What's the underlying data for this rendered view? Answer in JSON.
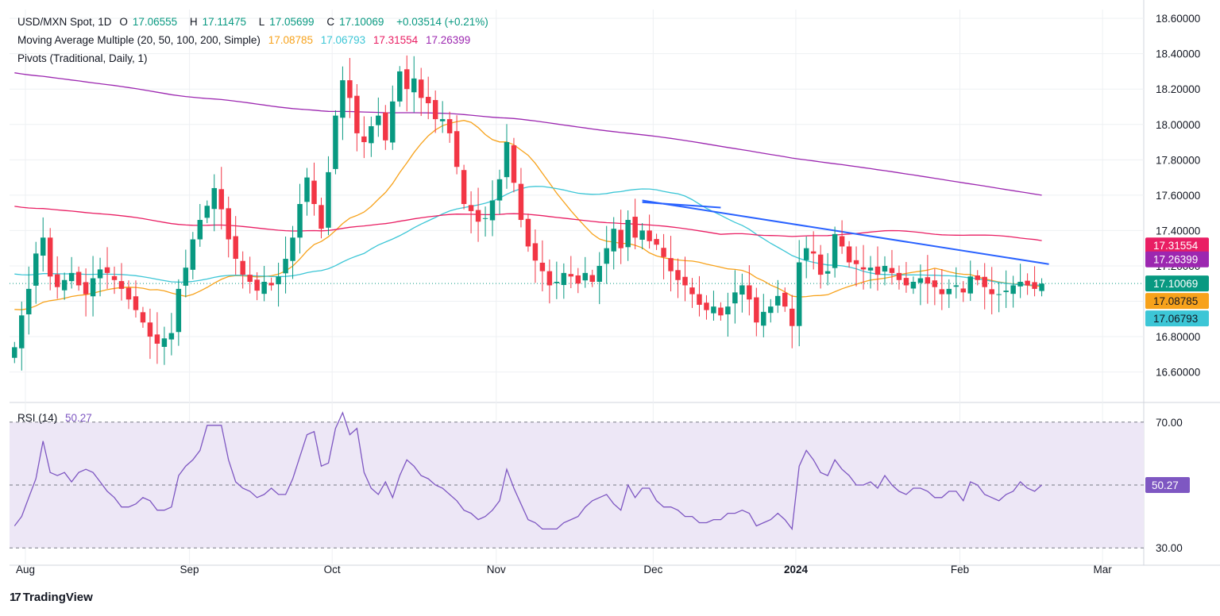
{
  "header": {
    "symbol": "USD/MXN Spot, 1D",
    "open_label": "O",
    "open": "17.06555",
    "high_label": "H",
    "high": "17.11475",
    "low_label": "L",
    "low": "17.05699",
    "close_label": "C",
    "close": "17.10069",
    "change": "+0.03514 (+0.21%)",
    "ma_label": "Moving Average Multiple (20, 50, 100, 200, Simple)",
    "ma20": "17.08785",
    "ma50": "17.06793",
    "ma100": "17.31554",
    "ma200": "17.26399",
    "pivots_label": "Pivots (Traditional, Daily, 1)"
  },
  "rsi": {
    "label": "RSI (14)",
    "value": "50.27"
  },
  "brand": {
    "logo": "17",
    "name": "TradingView"
  },
  "colors": {
    "up": "#089981",
    "down": "#f23645",
    "ma20": "#f7a21b",
    "ma50": "#3cc6d6",
    "ma100": "#e91e63",
    "ma200": "#9c27b0",
    "trend": "#2962ff",
    "rsi": "#7e57c2",
    "rsi_band": "#ede7f6",
    "grid": "#eef0f3",
    "price_line": "#089981"
  },
  "chart_data": {
    "type": "candlestick",
    "title": "USD/MXN Spot, 1D",
    "ylim": [
      16.45,
      18.65
    ],
    "y_ticks": [
      "16.60000",
      "16.80000",
      "17.00000",
      "17.20000",
      "17.40000",
      "17.60000",
      "17.80000",
      "18.00000",
      "18.20000",
      "18.40000",
      "18.60000"
    ],
    "y_tick_values": [
      16.6,
      16.8,
      17.0,
      17.2,
      17.4,
      17.6,
      17.8,
      18.0,
      18.2,
      18.4,
      18.6
    ],
    "x_ticks": [
      {
        "label": "Aug",
        "i": 0,
        "bold": false
      },
      {
        "label": "Sep",
        "i": 23,
        "bold": false
      },
      {
        "label": "Oct",
        "i": 43,
        "bold": false
      },
      {
        "label": "Nov",
        "i": 66,
        "bold": false
      },
      {
        "label": "Dec",
        "i": 88,
        "bold": false
      },
      {
        "label": "2024",
        "i": 108,
        "bold": true
      },
      {
        "label": "Feb",
        "i": 131,
        "bold": false
      },
      {
        "label": "Mar",
        "i": 151,
        "bold": false
      }
    ],
    "n_slots": 159,
    "close": [
      16.74,
      16.92,
      17.07,
      17.27,
      17.36,
      17.14,
      17.08,
      17.12,
      17.16,
      17.09,
      17.04,
      17.13,
      17.18,
      17.16,
      17.12,
      17.07,
      17.01,
      16.95,
      16.88,
      16.8,
      16.76,
      16.79,
      16.82,
      17.07,
      17.19,
      17.35,
      17.46,
      17.54,
      17.64,
      17.52,
      17.35,
      17.24,
      17.15,
      17.11,
      17.06,
      17.11,
      17.09,
      17.14,
      17.24,
      17.36,
      17.55,
      17.7,
      17.55,
      17.41,
      17.73,
      18.05,
      18.25,
      18.15,
      17.95,
      17.9,
      17.99,
      18.05,
      17.91,
      18.13,
      18.3,
      18.2,
      18.26,
      18.15,
      18.12,
      18.03,
      18.03,
      17.95,
      17.76,
      17.55,
      17.51,
      17.45,
      17.47,
      17.57,
      17.69,
      17.9,
      17.67,
      17.46,
      17.31,
      17.23,
      17.17,
      17.09,
      17.11,
      17.16,
      17.14,
      17.1,
      17.16,
      17.11,
      17.2,
      17.3,
      17.41,
      17.3,
      17.46,
      17.36,
      17.4,
      17.34,
      17.32,
      17.25,
      17.17,
      17.12,
      17.09,
      17.04,
      16.98,
      16.95,
      16.97,
      16.92,
      16.97,
      17.05,
      17.09,
      17.01,
      16.88,
      16.94,
      16.97,
      17.03,
      16.97,
      16.86,
      17.22,
      17.3,
      17.27,
      17.15,
      17.17,
      17.38,
      17.31,
      17.22,
      17.21,
      17.18,
      17.19,
      17.15,
      17.2,
      17.16,
      17.12,
      17.09,
      17.11,
      17.13,
      17.1,
      17.08,
      17.04,
      17.07,
      17.09,
      17.05,
      17.14,
      17.12,
      17.08,
      17.04,
      17.04,
      17.06,
      17.09,
      17.11,
      17.09,
      17.07,
      17.1
    ],
    "moving_averages": [
      {
        "name": "MA 20",
        "period": 20,
        "value": "17.08785"
      },
      {
        "name": "MA 50",
        "period": 50,
        "value": "17.06793"
      },
      {
        "name": "MA 100",
        "period": 100,
        "value": "17.31554"
      },
      {
        "name": "MA 200",
        "period": 200,
        "value": "17.26399"
      }
    ],
    "trendlines": [
      {
        "i1": 88,
        "y1": 17.56,
        "i2": 99,
        "y2": 17.53
      },
      {
        "i1": 88,
        "y1": 17.57,
        "i2": 145,
        "y2": 17.21
      }
    ],
    "rsi": {
      "ylim": [
        25,
        75
      ],
      "levels": [
        30,
        70
      ],
      "mid": 50,
      "level_labels": [
        "70.00",
        "30.00"
      ],
      "values": [
        37,
        40,
        46,
        52,
        64,
        54,
        53,
        54,
        51,
        54,
        55,
        54,
        51,
        48,
        46,
        43,
        43,
        44,
        46,
        45,
        42,
        42,
        43,
        53,
        56,
        58,
        61,
        69,
        69,
        69,
        58,
        51,
        49,
        48,
        46,
        47,
        49,
        47,
        47,
        52,
        59,
        66,
        67,
        56,
        57,
        68,
        73,
        66,
        68,
        54,
        49,
        47,
        51,
        46,
        53,
        58,
        56,
        53,
        52,
        50,
        49,
        47,
        45,
        42,
        41,
        39,
        40,
        42,
        45,
        55,
        49,
        44,
        39,
        38,
        36,
        36,
        36,
        38,
        39,
        40,
        43,
        45,
        46,
        47,
        44,
        42,
        50,
        46,
        49,
        49,
        45,
        43,
        43,
        42,
        40,
        40,
        38,
        38,
        39,
        39,
        41,
        41,
        42,
        41,
        37,
        38,
        39,
        41,
        39,
        36,
        56,
        61,
        58,
        54,
        53,
        58,
        55,
        53,
        50,
        50,
        51,
        49,
        53,
        50,
        48,
        47,
        49,
        49,
        48,
        46,
        46,
        48,
        48,
        45,
        51,
        50,
        47,
        46,
        45,
        47,
        48,
        51,
        49,
        48,
        50
      ]
    }
  }
}
